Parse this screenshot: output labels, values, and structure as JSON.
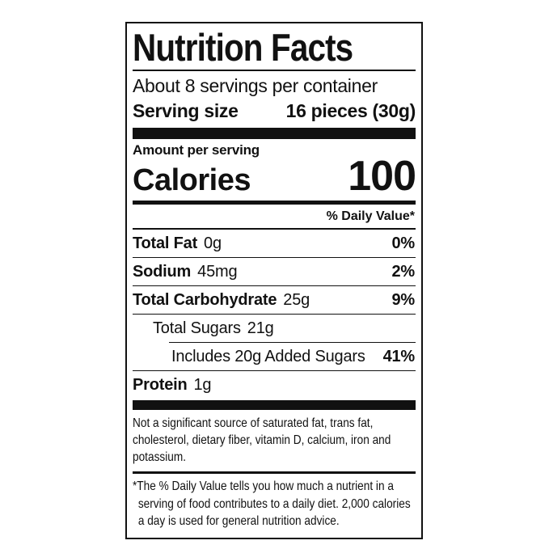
{
  "label": {
    "title": "Nutrition Facts",
    "servings_per_container": "About 8 servings per container",
    "serving_size_label": "Serving size",
    "serving_size_value": "16 pieces (30g)",
    "amount_per_serving": "Amount per serving",
    "calories_label": "Calories",
    "calories_value": "100",
    "daily_value_header": "% Daily Value*",
    "rows": [
      {
        "name": "Total Fat",
        "amount": "0g",
        "dv": "0%"
      },
      {
        "name": "Sodium",
        "amount": "45mg",
        "dv": "2%"
      },
      {
        "name": "Total Carbohydrate",
        "amount": "25g",
        "dv": "9%"
      },
      {
        "name": "Total Sugars",
        "amount": "21g",
        "dv": ""
      },
      {
        "name": "Includes 20g Added Sugars",
        "amount": "",
        "dv": "41%"
      },
      {
        "name": "Protein",
        "amount": "1g",
        "dv": ""
      }
    ],
    "not_significant_note": "Not a significant source of saturated fat, trans fat, cholesterol, dietary fiber, vitamin D, calcium, iron and potassium.",
    "footnote": "*The % Daily Value tells you how much a nutrient in a serving of food contributes to a daily diet. 2,000 calories a day is used for general nutrition advice."
  },
  "colors": {
    "text": "#111111",
    "background": "#ffffff",
    "rule": "#111111"
  }
}
